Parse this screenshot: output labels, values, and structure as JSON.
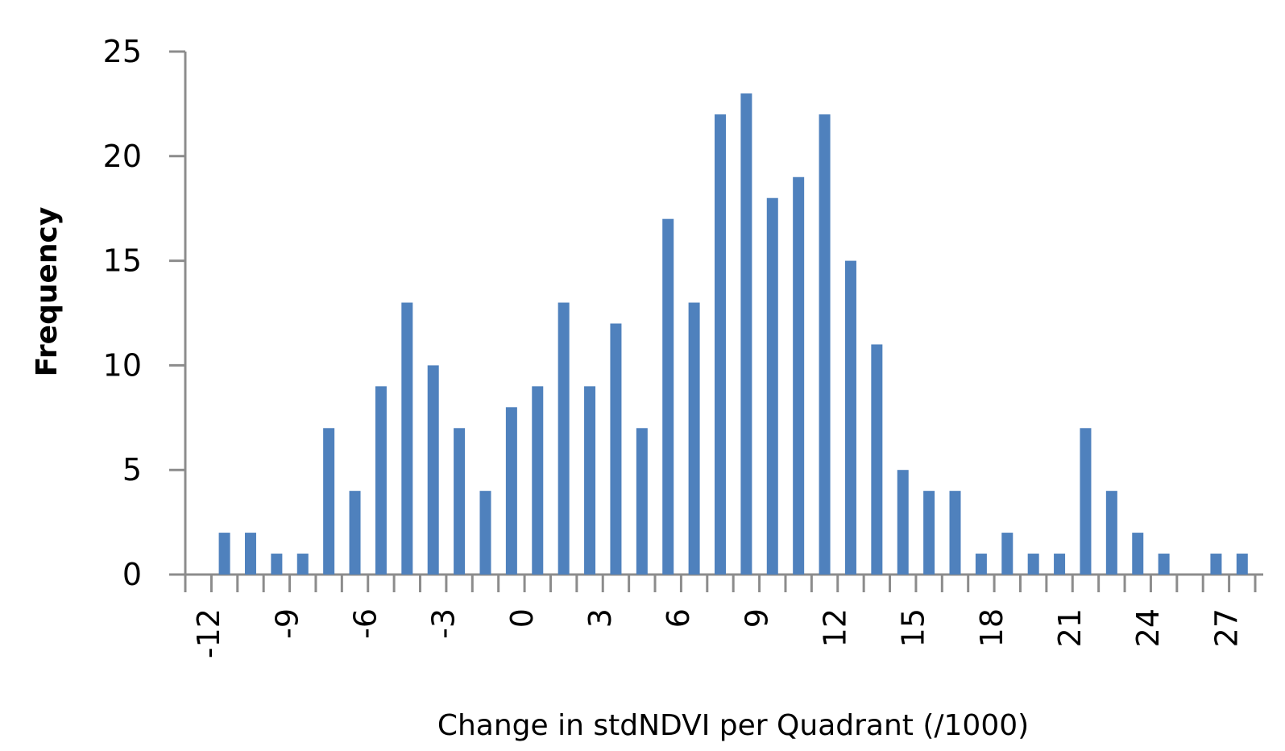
{
  "chart_data": {
    "type": "bar",
    "x_label": "Change in stdNDVI per Quadrant (/1000)",
    "y_label": "Frequency",
    "categories": [
      -12,
      null,
      null,
      -9,
      null,
      null,
      -6,
      null,
      null,
      -3,
      null,
      null,
      0,
      null,
      null,
      3,
      null,
      null,
      6,
      null,
      null,
      9,
      null,
      null,
      12,
      null,
      null,
      15,
      null,
      null,
      18,
      null,
      null,
      21,
      null,
      null,
      24,
      null,
      null,
      27,
      null
    ],
    "values": [
      0,
      2,
      2,
      1,
      1,
      7,
      4,
      9,
      13,
      10,
      7,
      4,
      8,
      9,
      13,
      9,
      12,
      7,
      17,
      13,
      22,
      23,
      18,
      19,
      22,
      15,
      11,
      5,
      4,
      4,
      1,
      2,
      1,
      1,
      7,
      4,
      2,
      1,
      0,
      1,
      1
    ],
    "color": "#4f81bd",
    "ylim": [
      0,
      25
    ],
    "yticks": [
      0,
      5,
      10,
      15,
      20,
      25
    ],
    "grid": false
  }
}
